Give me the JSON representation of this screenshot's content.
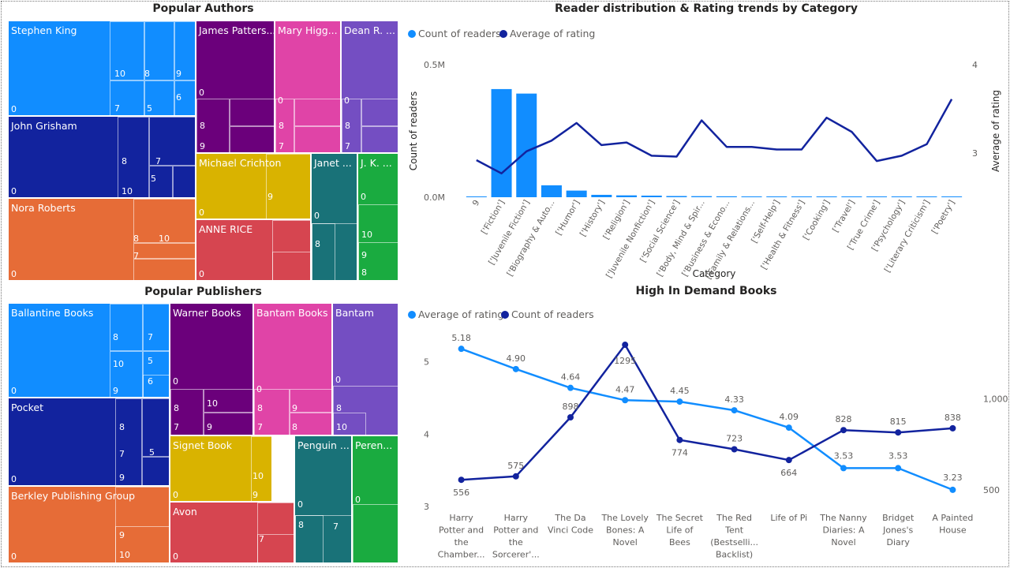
{
  "popular_authors": {
    "title": "Popular Authors",
    "tiles": [
      {
        "label": "Stephen King",
        "color": "#118DFF",
        "small_labels": [
          "0",
          "10",
          "8",
          "9",
          "6",
          "7",
          "5"
        ]
      },
      {
        "label": "John Grisham",
        "color": "#12239E",
        "small_labels": [
          "0",
          "8",
          "7",
          "5",
          "10"
        ]
      },
      {
        "label": "Nora Roberts",
        "color": "#E66C37",
        "small_labels": [
          "0",
          "8",
          "10",
          "7"
        ]
      },
      {
        "label": "James Patters...",
        "color": "#6B007B",
        "small_labels": [
          "0",
          "8",
          "9"
        ]
      },
      {
        "label": "Mary Higg...",
        "color": "#E044A7",
        "small_labels": [
          "0",
          "8",
          "7"
        ]
      },
      {
        "label": "Dean R. ...",
        "color": "#744EC2",
        "small_labels": [
          "0",
          "8",
          "7"
        ]
      },
      {
        "label": "Michael Crichton",
        "color": "#D9B300",
        "small_labels": [
          "0",
          "9"
        ]
      },
      {
        "label": "Janet ...",
        "color": "#197278",
        "small_labels": [
          "0",
          "8"
        ]
      },
      {
        "label": "J. K. ...",
        "color": "#1AAB40",
        "small_labels": [
          "0",
          "10",
          "9",
          "8"
        ]
      },
      {
        "label": "ANNE RICE",
        "color": "#D64550",
        "small_labels": [
          "0"
        ]
      }
    ]
  },
  "popular_publishers": {
    "title": "Popular Publishers",
    "tiles": [
      {
        "label": "Ballantine Books",
        "color": "#118DFF",
        "small_labels": [
          "0",
          "8",
          "7",
          "10",
          "5",
          "6",
          "9"
        ]
      },
      {
        "label": "Pocket",
        "color": "#12239E",
        "small_labels": [
          "0",
          "8",
          "7",
          "5",
          "9"
        ]
      },
      {
        "label": "Berkley Publishing Group",
        "color": "#E66C37",
        "small_labels": [
          "0",
          "9",
          "10"
        ]
      },
      {
        "label": "Warner Books",
        "color": "#6B007B",
        "small_labels": [
          "0",
          "8",
          "10",
          "7",
          "9"
        ]
      },
      {
        "label": "Bantam Books",
        "color": "#E044A7",
        "small_labels": [
          "0",
          "8",
          "9",
          "7",
          "8"
        ]
      },
      {
        "label": "Bantam",
        "color": "#744EC2",
        "small_labels": [
          "0",
          "8",
          "10"
        ]
      },
      {
        "label": "Signet Book",
        "color": "#D9B300",
        "small_labels": [
          "0",
          "10",
          "9"
        ]
      },
      {
        "label": "Penguin ...",
        "color": "#197278",
        "small_labels": [
          "0",
          "8",
          "7"
        ]
      },
      {
        "label": "Peren...",
        "color": "#1AAB40",
        "small_labels": [
          "0"
        ]
      },
      {
        "label": "Avon",
        "color": "#D64550",
        "small_labels": [
          "0",
          "7"
        ]
      }
    ]
  },
  "chart_data": [
    {
      "type": "bar",
      "title": "Reader distribution & Rating trends by Category",
      "xlabel": "Category",
      "ylabel": "Count of readers",
      "y2label": "Average of rating",
      "legend": [
        "Count of readers",
        "Average of rating"
      ],
      "legend_position": "top-left",
      "categories": [
        "9",
        "['Fiction']",
        "['Juvenile Fiction']",
        "['Biography & Auto...",
        "['Humor']",
        "['History']",
        "['Religion']",
        "['Juvenile Nonfiction']",
        "['Social Science']",
        "['Body, Mind & Spir...",
        "['Business & Econo...",
        "['Family & Relations...",
        "['Self-Help']",
        "['Health & Fitness']",
        "['Cooking']",
        "['Travel']",
        "['True Crime']",
        "['Psychology']",
        "['Literary Criticism']",
        "['Poetry']"
      ],
      "series": [
        {
          "name": "Count of readers",
          "kind": "bar",
          "axis": "left",
          "values": [
            0,
            408000,
            391000,
            45000,
            25000,
            9000,
            7000,
            6000,
            4500,
            4000,
            3500,
            3000,
            3000,
            2500,
            2500,
            2300,
            2000,
            2000,
            1500,
            1500
          ]
        },
        {
          "name": "Average of rating",
          "kind": "line",
          "axis": "right",
          "values": [
            2.92,
            2.77,
            3.02,
            3.14,
            3.34,
            3.09,
            3.12,
            2.97,
            2.96,
            3.37,
            3.07,
            3.07,
            3.04,
            3.04,
            3.4,
            3.24,
            2.91,
            2.97,
            3.1,
            3.61
          ]
        }
      ],
      "ylim": [
        0,
        500000
      ],
      "y_ticks": [
        "0.0M",
        "0.5M"
      ],
      "y2lim": [
        2.5,
        4
      ],
      "y2_ticks": [
        "3",
        "4"
      ],
      "colors": {
        "bars": "#118DFF",
        "line": "#12239E"
      }
    },
    {
      "type": "line",
      "title": "High In Demand Books",
      "legend": [
        "Average of rating",
        "Count of readers"
      ],
      "legend_position": "top-left",
      "categories": [
        [
          "Harry",
          "Potter and",
          "the",
          "Chamber..."
        ],
        [
          "Harry",
          "Potter and",
          "the",
          "Sorcerer'..."
        ],
        [
          "The Da",
          "Vinci Code"
        ],
        [
          "The Lovely",
          "Bones: A",
          "Novel"
        ],
        [
          "The Secret",
          "Life of",
          "Bees"
        ],
        [
          "The Red",
          "Tent",
          "(Bestselli...",
          "Backlist)"
        ],
        [
          "Life of Pi"
        ],
        [
          "The Nanny",
          "Diaries: A",
          "Novel"
        ],
        [
          "Bridget",
          "Jones's",
          "Diary"
        ],
        [
          "A Painted",
          "House"
        ]
      ],
      "series": [
        {
          "name": "Average of rating",
          "axis": "left",
          "values": [
            5.18,
            4.9,
            4.64,
            4.47,
            4.45,
            4.33,
            4.09,
            3.53,
            3.53,
            3.23
          ],
          "labels": [
            "5.18",
            "4.90",
            "4.64",
            "4.47",
            "4.45",
            "4.33",
            "4.09",
            "3.53",
            "3.53",
            "3.23"
          ]
        },
        {
          "name": "Count of readers",
          "axis": "right",
          "values": [
            556,
            575,
            898,
            1295,
            774,
            723,
            664,
            828,
            815,
            838
          ],
          "labels": [
            "556",
            "575",
            "898",
            "1295",
            "774",
            "723",
            "664",
            "828",
            "815",
            "838"
          ]
        }
      ],
      "ylim": [
        3,
        5.4
      ],
      "y_ticks": [
        "3",
        "4",
        "5"
      ],
      "y2lim": [
        410,
        1360
      ],
      "y2_ticks": [
        "500",
        "1,000"
      ],
      "colors": {
        "rating": "#118DFF",
        "readers": "#12239E"
      }
    }
  ]
}
